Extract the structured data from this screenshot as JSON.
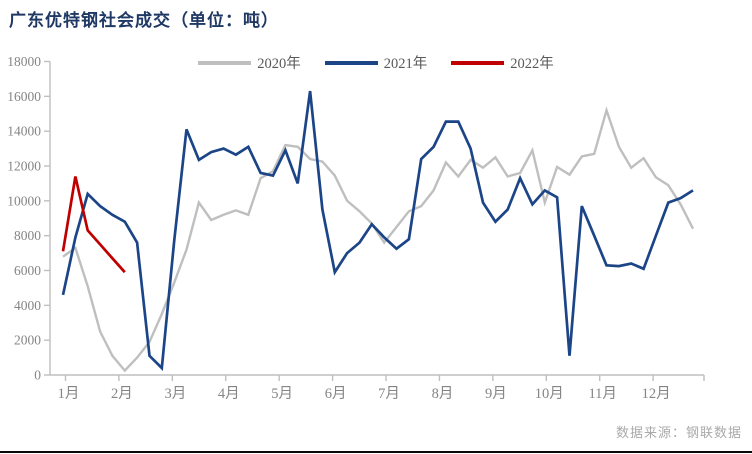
{
  "header": {
    "title": "广东优特钢社会成交（单位：吨）",
    "title_color": "#1f3864"
  },
  "legend": {
    "position": "top-center",
    "items": [
      {
        "label": "2020年",
        "color": "#bfbfbf"
      },
      {
        "label": "2021年",
        "color": "#1c4587"
      },
      {
        "label": "2022年",
        "color": "#c00000"
      }
    ]
  },
  "footer": {
    "source_label": "数据来源：钢联数据"
  },
  "chart_data": {
    "type": "line",
    "title": "广东优特钢社会成交（单位：吨）",
    "unit": "吨",
    "grid": false,
    "legend_position": "top",
    "axis_color": "#bfbfbf",
    "tick_text_color": "#858585",
    "x_axis": {
      "labels": [
        "1月",
        "2月",
        "3月",
        "4月",
        "5月",
        "6月",
        "7月",
        "8月",
        "9月",
        "10月",
        "11月",
        "12月"
      ],
      "points_per_year": 52,
      "note": "weekly data points"
    },
    "y_axis": {
      "min": 0,
      "max": 18000,
      "tick_step": 2000,
      "tick_labels": [
        "0",
        "2000",
        "4000",
        "6000",
        "8000",
        "10000",
        "12000",
        "14000",
        "16000",
        "18000"
      ]
    },
    "series": [
      {
        "name": "2020年",
        "color": "#bfbfbf",
        "width": 2.4,
        "values": [
          6800,
          7300,
          5100,
          2500,
          1100,
          250,
          1000,
          1900,
          3500,
          5300,
          7200,
          9900,
          8900,
          9200,
          9450,
          9200,
          11300,
          11700,
          13200,
          13100,
          12400,
          12250,
          11450,
          10000,
          9400,
          8700,
          7600,
          8500,
          9400,
          9700,
          10600,
          12200,
          11400,
          12350,
          11900,
          12500,
          11400,
          11600,
          12900,
          9900,
          11950,
          11500,
          12550,
          12700,
          15200,
          13100,
          11900,
          12450,
          11350,
          10900,
          9800,
          8400
        ]
      },
      {
        "name": "2021年",
        "color": "#1c4587",
        "width": 2.7,
        "values": [
          4600,
          7900,
          10400,
          9700,
          9200,
          8800,
          7600,
          1100,
          400,
          7700,
          14100,
          12350,
          12800,
          13000,
          12650,
          13100,
          11600,
          11450,
          12900,
          11000,
          16300,
          9500,
          5900,
          7000,
          7600,
          8650,
          7900,
          7250,
          7800,
          12400,
          13100,
          14550,
          14550,
          13000,
          9900,
          8800,
          9500,
          11300,
          9800,
          10600,
          10200,
          1100,
          9700,
          8000,
          6300,
          6250,
          6400,
          6100,
          8000,
          9900,
          10150,
          10600
        ]
      },
      {
        "name": "2022年",
        "color": "#c00000",
        "width": 2.7,
        "values": [
          7100,
          11400,
          8300,
          7500,
          6700,
          5900
        ]
      }
    ]
  }
}
